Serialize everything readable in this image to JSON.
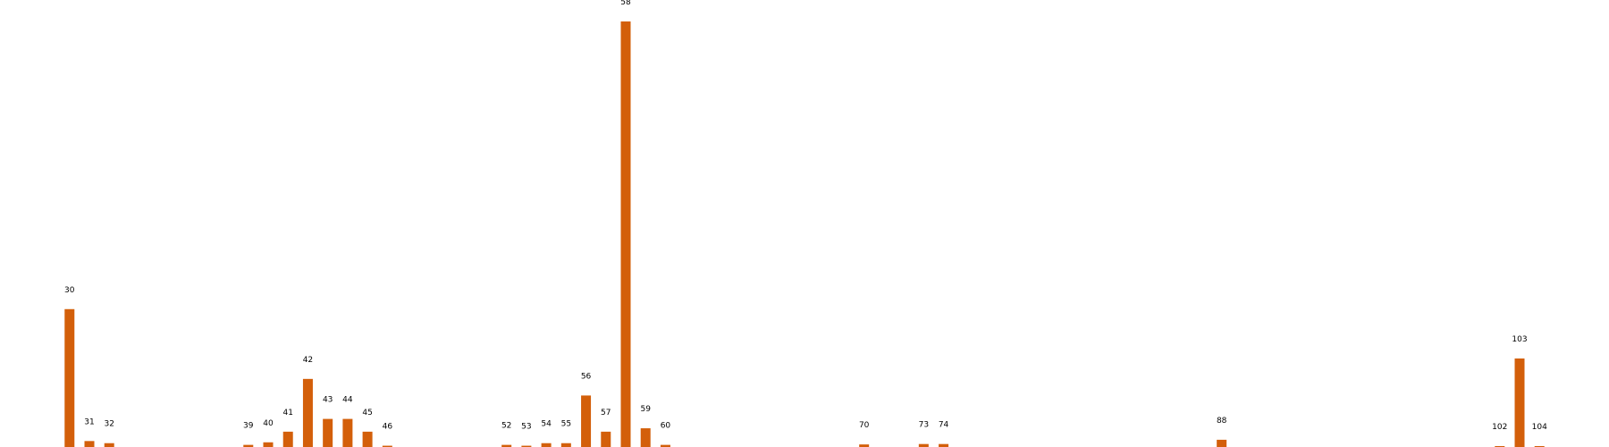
{
  "chart_data": {
    "type": "bar",
    "title": "",
    "xlabel": "",
    "ylabel": "",
    "grid": false,
    "legend": "none",
    "bar_color": "#D35F0A",
    "label_color": "#000000",
    "background": "#FFFFFF",
    "xlim": [
      26.5,
      107.5
    ],
    "ylim": [
      0,
      1000
    ],
    "categories": [
      "30",
      "31",
      "32",
      "39",
      "40",
      "41",
      "42",
      "43",
      "44",
      "45",
      "46",
      "52",
      "53",
      "54",
      "55",
      "56",
      "57",
      "58",
      "59",
      "60",
      "70",
      "73",
      "74",
      "88",
      "102",
      "103",
      "104"
    ],
    "x": [
      30,
      31,
      32,
      39,
      40,
      41,
      42,
      43,
      44,
      45,
      46,
      52,
      53,
      54,
      55,
      56,
      57,
      58,
      59,
      60,
      70,
      73,
      74,
      88,
      102,
      103,
      104
    ],
    "values": [
      324,
      14,
      9,
      5,
      11,
      36,
      160,
      66,
      66,
      36,
      3,
      5,
      3,
      9,
      9,
      121,
      36,
      1000,
      44,
      5,
      6,
      7,
      7,
      17,
      2,
      208,
      2
    ]
  }
}
